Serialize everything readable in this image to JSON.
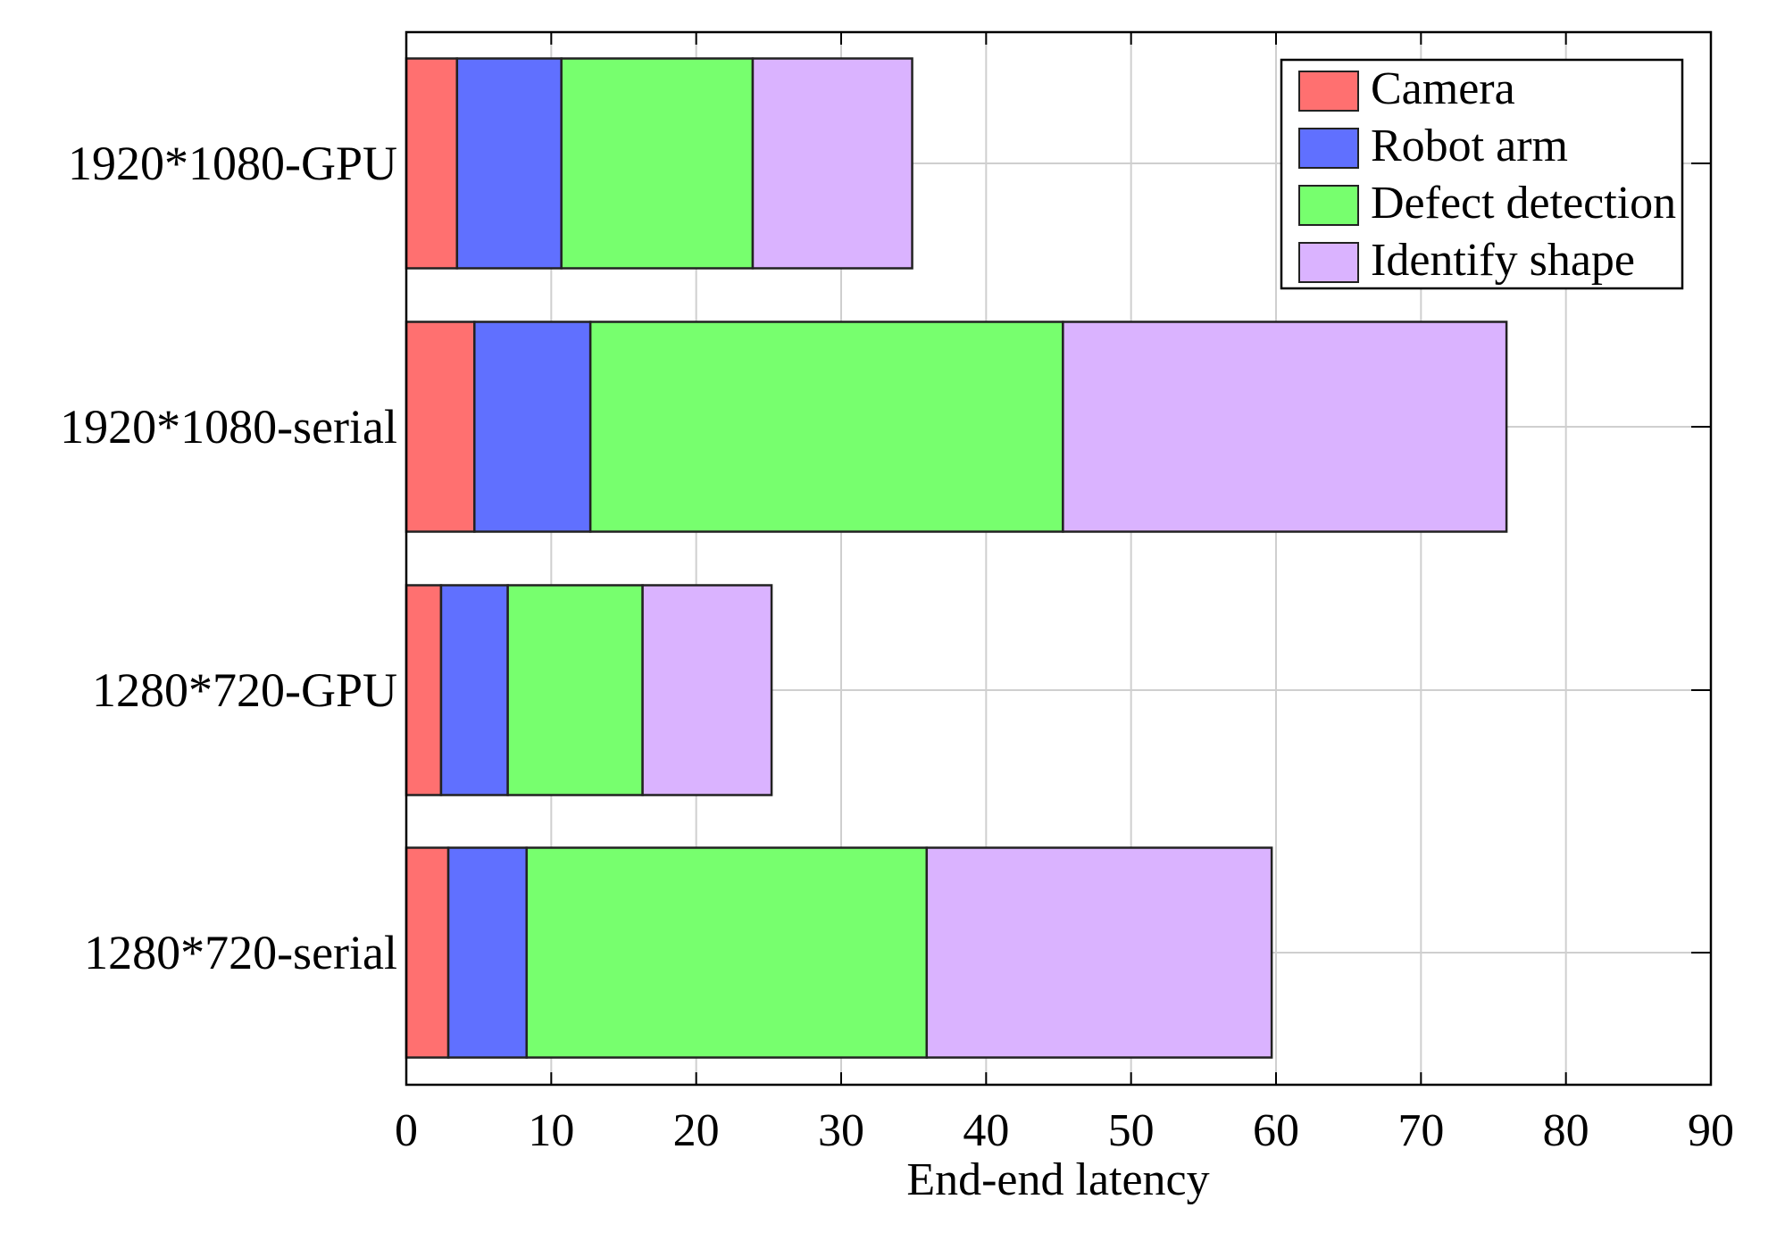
{
  "chart_data": {
    "type": "bar",
    "orientation": "horizontal",
    "stacked": true,
    "title": "",
    "xlabel": "End-end latency",
    "ylabel": "",
    "xlim": [
      0,
      90
    ],
    "xticks": [
      0,
      10,
      20,
      30,
      40,
      50,
      60,
      70,
      80,
      90
    ],
    "grid": true,
    "legend_position": "top-right",
    "categories": [
      "1920*1080-GPU",
      "1920*1080-serial",
      "1280*720-GPU",
      "1280*720-serial"
    ],
    "series": [
      {
        "name": "Camera",
        "color": "#ff7070",
        "values": [
          3.5,
          4.7,
          2.4,
          2.9
        ]
      },
      {
        "name": "Robot arm",
        "color": "#6070ff",
        "values": [
          7.2,
          8.0,
          4.6,
          5.4
        ]
      },
      {
        "name": "Defect detection",
        "color": "#77ff6e",
        "values": [
          13.2,
          32.6,
          9.3,
          27.6
        ]
      },
      {
        "name": "Identify shape",
        "color": "#dab3ff",
        "values": [
          11.0,
          30.6,
          8.9,
          23.8
        ]
      }
    ]
  }
}
